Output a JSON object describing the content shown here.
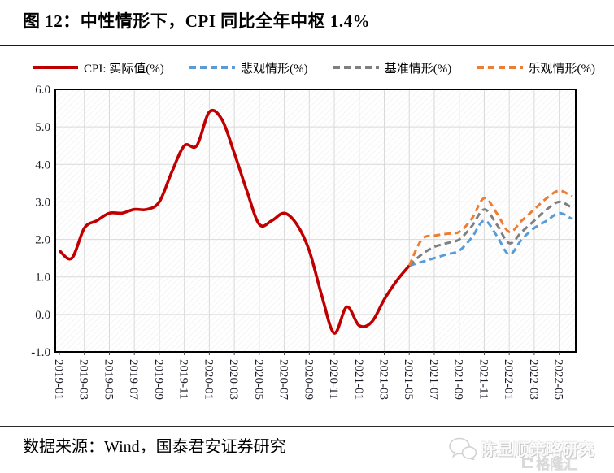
{
  "header": {
    "title": "图 12：中性情形下，CPI 同比全年中枢 1.4%"
  },
  "footer": {
    "source": "数据来源：Wind，国泰君安证券研究",
    "watermark": "陈显顺策略研究",
    "logo_text": "格隆汇"
  },
  "chart_data": {
    "type": "line",
    "title": "图 12：中性情形下，CPI 同比全年中枢 1.4%",
    "grid": true,
    "legend_position": "top",
    "ylim": [
      -1.0,
      6.0
    ],
    "y_tick_labels": [
      "6.0",
      "5.0",
      "4.0",
      "3.0",
      "2.0",
      "1.0",
      "0.0",
      "-1.0"
    ],
    "x_tick_labels": [
      "2019-01",
      "2019-03",
      "2019-05",
      "2019-07",
      "2019-09",
      "2019-11",
      "2020-01",
      "2020-03",
      "2020-05",
      "2020-07",
      "2020-09",
      "2020-11",
      "2021-01",
      "2021-03",
      "2021-05",
      "2021-07",
      "2021-09",
      "2021-11",
      "2022-01",
      "2022-03",
      "2022-05"
    ],
    "first_month": "2019-01",
    "last_month": "2022-06",
    "months_total": 42,
    "series": [
      {
        "name": "CPI: 实际值(%)",
        "color": "#c00000",
        "line_style": "solid",
        "start_index": 0,
        "values": [
          1.7,
          1.5,
          2.3,
          2.5,
          2.7,
          2.7,
          2.8,
          2.8,
          3.0,
          3.8,
          4.5,
          4.5,
          5.4,
          5.2,
          4.3,
          3.3,
          2.4,
          2.5,
          2.7,
          2.4,
          1.7,
          0.5,
          -0.5,
          0.2,
          -0.3,
          -0.2,
          0.4,
          0.9,
          1.3
        ]
      },
      {
        "name": "悲观情形(%)",
        "color": "#5b9bd5",
        "line_style": "dashed",
        "start_index": 28,
        "values": [
          1.3,
          1.4,
          1.5,
          1.6,
          1.7,
          2.05,
          2.5,
          2.1,
          1.6,
          2.0,
          2.3,
          2.5,
          2.7,
          2.55
        ]
      },
      {
        "name": "基准情形(%)",
        "color": "#7f7f7f",
        "line_style": "dashed",
        "start_index": 28,
        "values": [
          1.3,
          1.6,
          1.8,
          1.9,
          2.0,
          2.35,
          2.8,
          2.4,
          1.9,
          2.2,
          2.5,
          2.8,
          3.0,
          2.85
        ]
      },
      {
        "name": "乐观情形(%)",
        "color": "#ed7d31",
        "line_style": "dashed",
        "start_index": 28,
        "values": [
          1.3,
          2.0,
          2.1,
          2.15,
          2.2,
          2.55,
          3.1,
          2.7,
          2.2,
          2.5,
          2.8,
          3.1,
          3.3,
          3.15
        ]
      }
    ]
  }
}
